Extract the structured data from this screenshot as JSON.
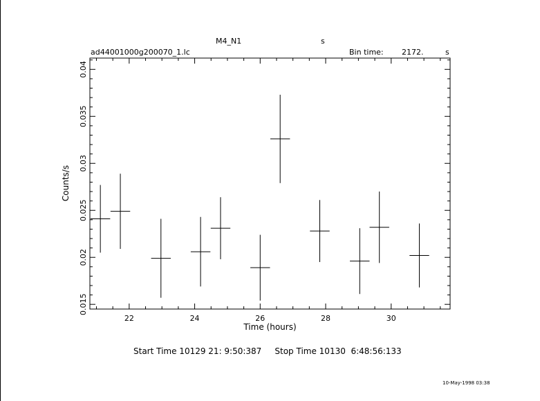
{
  "header": {
    "title_left": "M4_N1",
    "title_right": "s",
    "filename": "ad44001000g200070_1.lc",
    "bin_time_label": "Bin time:",
    "bin_time_value": "2172.",
    "bin_time_unit": "s"
  },
  "footer": {
    "start_stop": "Start Time 10129 21: 9:50:387     Stop Time 10130  6:48:56:133",
    "timestamp": "10-May-1998 03:38"
  },
  "chart_data": {
    "type": "scatter",
    "xlabel": "Time (hours)",
    "ylabel": "Counts/s",
    "xlim": [
      20.8,
      31.8
    ],
    "ylim": [
      0.0145,
      0.0412
    ],
    "x_ticks": [
      22,
      24,
      26,
      28,
      30
    ],
    "y_ticks": [
      0.015,
      0.02,
      0.025,
      0.03,
      0.035,
      0.04
    ],
    "x_tick_labels": [
      "22",
      "24",
      "26",
      "28",
      "30"
    ],
    "y_tick_labels": [
      "0.015",
      "0.02",
      "0.025",
      "0.03",
      "0.035",
      "0.04"
    ],
    "series": [
      {
        "points": [
          {
            "x": 21.12,
            "xerr": 0.3,
            "y": 0.0241,
            "yerr": 0.0036
          },
          {
            "x": 21.73,
            "xerr": 0.3,
            "y": 0.0249,
            "yerr": 0.004
          },
          {
            "x": 22.97,
            "xerr": 0.3,
            "y": 0.0199,
            "yerr": 0.0042
          },
          {
            "x": 24.18,
            "xerr": 0.3,
            "y": 0.0206,
            "yerr": 0.0037
          },
          {
            "x": 24.79,
            "xerr": 0.3,
            "y": 0.0231,
            "yerr": 0.0033
          },
          {
            "x": 26.0,
            "xerr": 0.3,
            "y": 0.0189,
            "yerr": 0.0035
          },
          {
            "x": 26.61,
            "xerr": 0.3,
            "y": 0.0326,
            "yerr": 0.0047
          },
          {
            "x": 27.82,
            "xerr": 0.3,
            "y": 0.0228,
            "yerr": 0.0033
          },
          {
            "x": 29.04,
            "xerr": 0.3,
            "y": 0.0196,
            "yerr": 0.0035
          },
          {
            "x": 29.64,
            "xerr": 0.3,
            "y": 0.0232,
            "yerr": 0.0038
          },
          {
            "x": 30.86,
            "xerr": 0.3,
            "y": 0.0202,
            "yerr": 0.0034
          }
        ]
      }
    ]
  }
}
